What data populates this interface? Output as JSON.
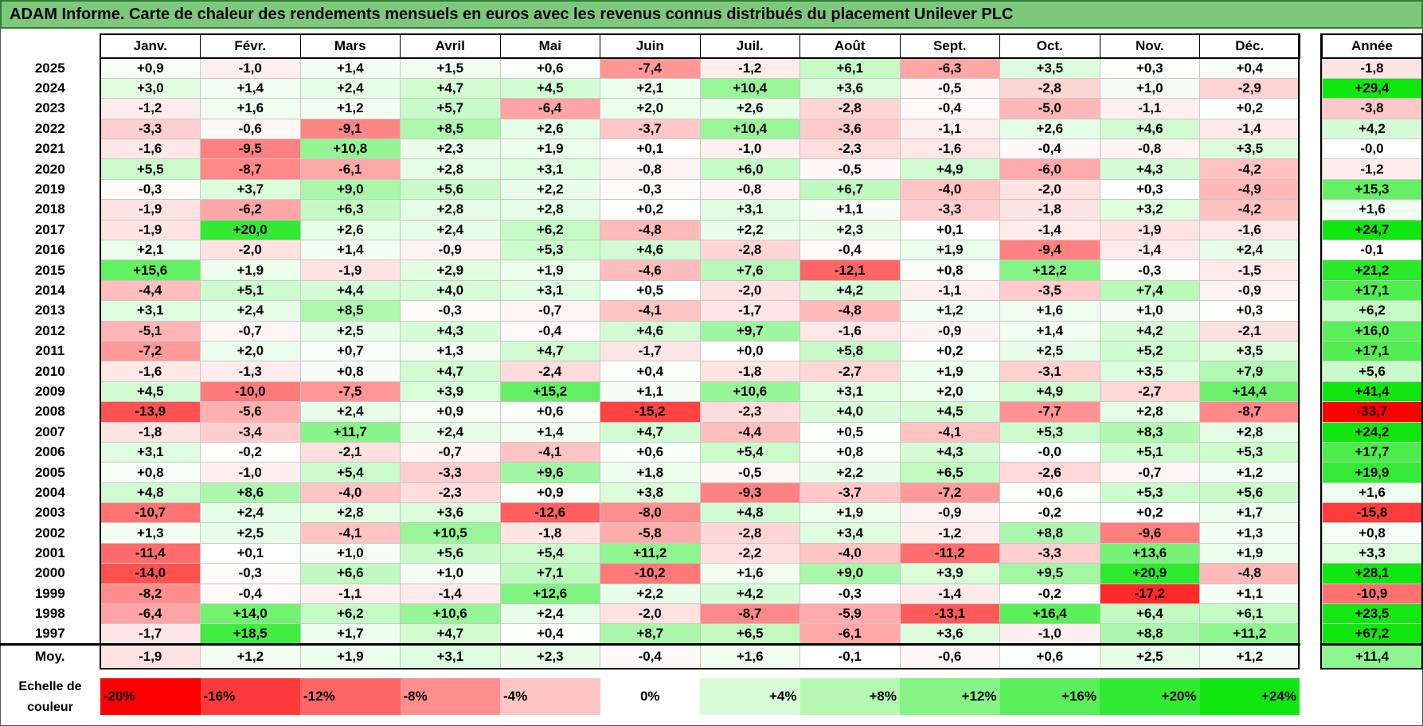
{
  "chart_data": {
    "type": "heatmap",
    "title": "ADAM Informe. Carte de chaleur des rendements mensuels en euros avec les revenus connus distribués du placement Unilever PLC",
    "months": [
      "Janv.",
      "Févr.",
      "Mars",
      "Avril",
      "Mai",
      "Juin",
      "Juil.",
      "Août",
      "Sept.",
      "Oct.",
      "Nov.",
      "Déc."
    ],
    "annual_label": "Année",
    "avg_label": "Moy.",
    "rows": [
      {
        "year": "2025",
        "values": [
          "+0,9",
          "-1,0",
          "+1,4",
          "+1,5",
          "+0,6",
          "-7,4",
          "-1,2",
          "+6,1",
          "-6,3",
          "+3,5",
          "+0,3",
          "+0,4"
        ],
        "annual": "-1,8"
      },
      {
        "year": "2024",
        "values": [
          "+3,0",
          "+1,4",
          "+2,4",
          "+4,7",
          "+4,5",
          "+2,1",
          "+10,4",
          "+3,6",
          "-0,5",
          "-2,8",
          "+1,0",
          "-2,9"
        ],
        "annual": "+29,4"
      },
      {
        "year": "2023",
        "values": [
          "-1,2",
          "+1,6",
          "+1,2",
          "+5,7",
          "-6,4",
          "+2,0",
          "+2,6",
          "-2,8",
          "-0,4",
          "-5,0",
          "-1,1",
          "+0,2"
        ],
        "annual": "-3,8"
      },
      {
        "year": "2022",
        "values": [
          "-3,3",
          "-0,6",
          "-9,1",
          "+8,5",
          "+2,6",
          "-3,7",
          "+10,4",
          "-3,6",
          "-1,1",
          "+2,6",
          "+4,6",
          "-1,4"
        ],
        "annual": "+4,2"
      },
      {
        "year": "2021",
        "values": [
          "-1,6",
          "-9,5",
          "+10,8",
          "+2,3",
          "+1,9",
          "+0,1",
          "-1,0",
          "-2,3",
          "-1,6",
          "-0,4",
          "-0,8",
          "+3,5"
        ],
        "annual": "-0,0"
      },
      {
        "year": "2020",
        "values": [
          "+5,5",
          "-8,7",
          "-6,1",
          "+2,8",
          "+3,1",
          "-0,8",
          "+6,0",
          "-0,5",
          "+4,9",
          "-6,0",
          "+4,3",
          "-4,2"
        ],
        "annual": "-1,2"
      },
      {
        "year": "2019",
        "values": [
          "-0,3",
          "+3,7",
          "+9,0",
          "+5,6",
          "+2,2",
          "-0,3",
          "-0,8",
          "+6,7",
          "-4,0",
          "-2,0",
          "+0,3",
          "-4,9"
        ],
        "annual": "+15,3"
      },
      {
        "year": "2018",
        "values": [
          "-1,9",
          "-6,2",
          "+6,3",
          "+2,8",
          "+2,8",
          "+0,2",
          "+3,1",
          "+1,1",
          "-3,3",
          "-1,8",
          "+3,2",
          "-4,2"
        ],
        "annual": "+1,6"
      },
      {
        "year": "2017",
        "values": [
          "-1,9",
          "+20,0",
          "+2,6",
          "+2,4",
          "+6,2",
          "-4,8",
          "+2,2",
          "+2,3",
          "+0,1",
          "-1,4",
          "-1,9",
          "-1,6"
        ],
        "annual": "+24,7"
      },
      {
        "year": "2016",
        "values": [
          "+2,1",
          "-2,0",
          "+1,4",
          "-0,9",
          "+5,3",
          "+4,6",
          "-2,8",
          "-0,4",
          "+1,9",
          "-9,4",
          "-1,4",
          "+2,4"
        ],
        "annual": "-0,1"
      },
      {
        "year": "2015",
        "values": [
          "+15,6",
          "+1,9",
          "-1,9",
          "+2,9",
          "+1,9",
          "-4,6",
          "+7,6",
          "-12,1",
          "+0,8",
          "+12,2",
          "-0,3",
          "-1,5"
        ],
        "annual": "+21,2"
      },
      {
        "year": "2014",
        "values": [
          "-4,4",
          "+5,1",
          "+4,4",
          "+4,0",
          "+3,1",
          "+0,5",
          "-2,0",
          "+4,2",
          "-1,1",
          "-3,5",
          "+7,4",
          "-0,9"
        ],
        "annual": "+17,1"
      },
      {
        "year": "2013",
        "values": [
          "+3,1",
          "+2,4",
          "+8,5",
          "-0,3",
          "-0,7",
          "-4,1",
          "-1,7",
          "-4,8",
          "+1,2",
          "+1,6",
          "+1,0",
          "+0,3"
        ],
        "annual": "+6,2"
      },
      {
        "year": "2012",
        "values": [
          "-5,1",
          "-0,7",
          "+2,5",
          "+4,3",
          "-0,4",
          "+4,6",
          "+9,7",
          "-1,6",
          "-0,9",
          "+1,4",
          "+4,2",
          "-2,1"
        ],
        "annual": "+16,0"
      },
      {
        "year": "2011",
        "values": [
          "-7,2",
          "+2,0",
          "+0,7",
          "+1,3",
          "+4,7",
          "-1,7",
          "+0,0",
          "+5,8",
          "+0,2",
          "+2,5",
          "+5,2",
          "+3,5"
        ],
        "annual": "+17,1"
      },
      {
        "year": "2010",
        "values": [
          "-1,6",
          "-1,3",
          "+0,8",
          "+4,7",
          "-2,4",
          "+0,4",
          "-1,8",
          "-2,7",
          "+1,9",
          "-3,1",
          "+3,5",
          "+7,9"
        ],
        "annual": "+5,6"
      },
      {
        "year": "2009",
        "values": [
          "+4,5",
          "-10,0",
          "-7,5",
          "+3,9",
          "+15,2",
          "+1,1",
          "+10,6",
          "+3,1",
          "+2,0",
          "+4,9",
          "-2,7",
          "+14,4"
        ],
        "annual": "+41,4"
      },
      {
        "year": "2008",
        "values": [
          "-13,9",
          "-5,6",
          "+2,4",
          "+0,9",
          "+0,6",
          "-15,2",
          "-2,3",
          "+4,0",
          "+4,5",
          "-7,7",
          "+2,8",
          "-8,7"
        ],
        "annual": "-33,7"
      },
      {
        "year": "2007",
        "values": [
          "-1,8",
          "-3,4",
          "+11,7",
          "+2,4",
          "+1,4",
          "+4,7",
          "-4,4",
          "+0,5",
          "-4,1",
          "+5,3",
          "+8,3",
          "+2,8"
        ],
        "annual": "+24,2"
      },
      {
        "year": "2006",
        "values": [
          "+3,1",
          "-0,2",
          "-2,1",
          "-0,7",
          "-4,1",
          "+0,6",
          "+5,4",
          "+0,8",
          "+4,3",
          "-0,0",
          "+5,1",
          "+5,3"
        ],
        "annual": "+17,7"
      },
      {
        "year": "2005",
        "values": [
          "+0,8",
          "-1,0",
          "+5,4",
          "-3,3",
          "+9,6",
          "+1,8",
          "-0,5",
          "+2,2",
          "+6,5",
          "-2,6",
          "-0,7",
          "+1,2"
        ],
        "annual": "+19,9"
      },
      {
        "year": "2004",
        "values": [
          "+4,8",
          "+8,6",
          "-4,0",
          "-2,3",
          "+0,9",
          "+3,8",
          "-9,3",
          "-3,7",
          "-7,2",
          "+0,6",
          "+5,3",
          "+5,6"
        ],
        "annual": "+1,6"
      },
      {
        "year": "2003",
        "values": [
          "-10,7",
          "+2,4",
          "+2,8",
          "+3,6",
          "-12,6",
          "-8,0",
          "+4,8",
          "+1,9",
          "-0,9",
          "-0,2",
          "+0,2",
          "+1,7"
        ],
        "annual": "-15,8"
      },
      {
        "year": "2002",
        "values": [
          "+1,3",
          "+2,5",
          "-4,1",
          "+10,5",
          "-1,8",
          "-5,8",
          "-2,8",
          "+3,4",
          "-1,2",
          "+8,8",
          "-9,6",
          "+1,3"
        ],
        "annual": "+0,8"
      },
      {
        "year": "2001",
        "values": [
          "-11,4",
          "+0,1",
          "+1,0",
          "+5,6",
          "+5,4",
          "+11,2",
          "-2,2",
          "-4,0",
          "-11,2",
          "-3,3",
          "+13,6",
          "+1,9"
        ],
        "annual": "+3,3"
      },
      {
        "year": "2000",
        "values": [
          "-14,0",
          "-0,3",
          "+6,6",
          "+1,0",
          "+7,1",
          "-10,2",
          "+1,6",
          "+9,0",
          "+3,9",
          "+9,5",
          "+20,9",
          "-4,8"
        ],
        "annual": "+28,1"
      },
      {
        "year": "1999",
        "values": [
          "-8,2",
          "-0,4",
          "-1,1",
          "-1,4",
          "+12,6",
          "+2,2",
          "+4,2",
          "-0,3",
          "-1,4",
          "-0,2",
          "-17,2",
          "+1,1"
        ],
        "annual": "-10,9"
      },
      {
        "year": "1998",
        "values": [
          "-6,4",
          "+14,0",
          "+6,2",
          "+10,6",
          "+2,4",
          "-2,0",
          "-8,7",
          "-5,9",
          "-13,1",
          "+16,4",
          "+6,4",
          "+6,1"
        ],
        "annual": "+23,5"
      },
      {
        "year": "1997",
        "values": [
          "-1,7",
          "+18,5",
          "+1,7",
          "+4,7",
          "+0,4",
          "+8,7",
          "+6,5",
          "-6,1",
          "+3,6",
          "-1,0",
          "+8,8",
          "+11,2"
        ],
        "annual": "+67,2"
      }
    ],
    "averages": {
      "values": [
        "-1,9",
        "+1,2",
        "+1,9",
        "+3,1",
        "+2,3",
        "-0,4",
        "+1,6",
        "-0,1",
        "-0,6",
        "+0,6",
        "+2,5",
        "+1,2"
      ],
      "annual": "+11,4"
    },
    "color_scale": {
      "label_line1": "Echelle de",
      "label_line2": "couleur",
      "stops": [
        {
          "label": "-20%",
          "value": -20,
          "color": "#ff0000"
        },
        {
          "label": "-16%",
          "value": -16,
          "color": "#ff3a3a"
        },
        {
          "label": "-12%",
          "value": -12,
          "color": "#ff6666"
        },
        {
          "label": "-8%",
          "value": -8,
          "color": "#ff8f8f"
        },
        {
          "label": "-4%",
          "value": -4,
          "color": "#ffc4c4"
        },
        {
          "label": "0%",
          "value": 0,
          "color": "#ffffff"
        },
        {
          "label": "+4%",
          "value": 4,
          "color": "#d8fcd8"
        },
        {
          "label": "+8%",
          "value": 8,
          "color": "#b4f8b4"
        },
        {
          "label": "+12%",
          "value": 12,
          "color": "#86f486"
        },
        {
          "label": "+16%",
          "value": 16,
          "color": "#5cef5c"
        },
        {
          "label": "+20%",
          "value": 20,
          "color": "#33ea33"
        },
        {
          "label": "+24%",
          "value": 24,
          "color": "#10e610"
        }
      ]
    },
    "colors": {
      "title_bg": "#7dc87d",
      "neg_max": "#ff0000",
      "pos_max": "#10e610"
    }
  }
}
